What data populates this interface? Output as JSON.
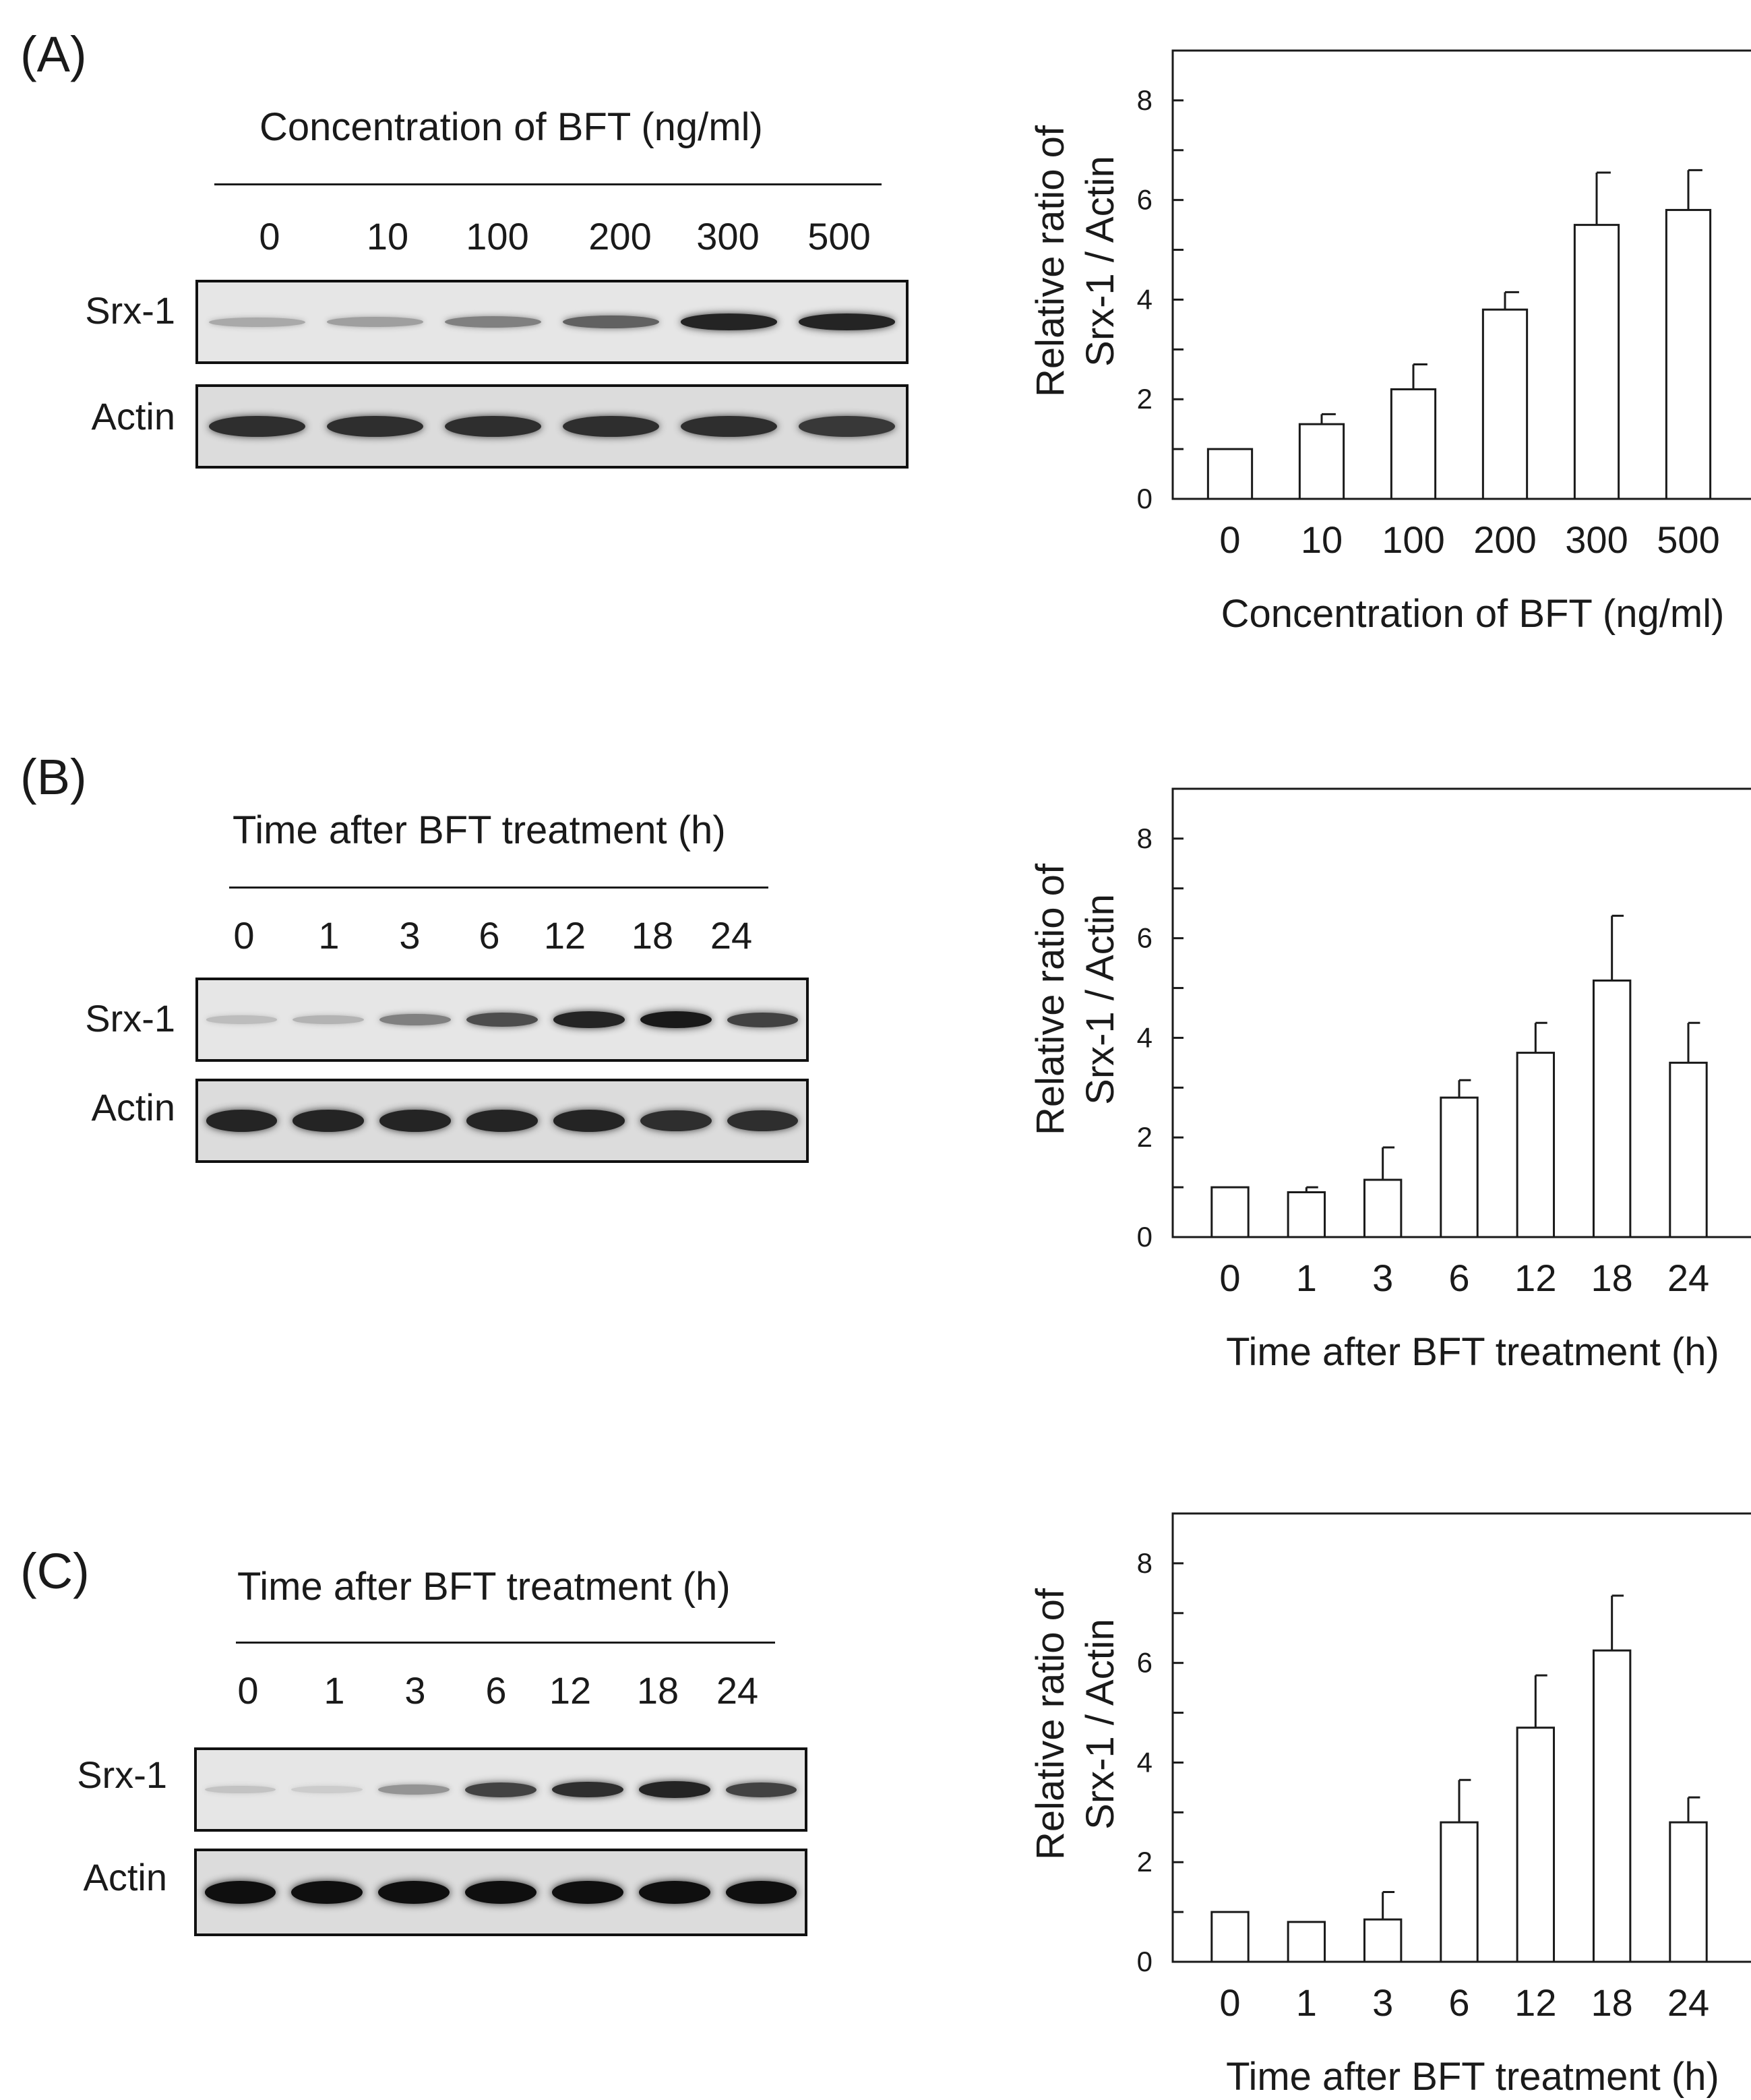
{
  "panels": [
    {
      "label": "(A)",
      "blot": {
        "title": "Concentration  of BFT  (ng/ml)",
        "lanes": [
          "0",
          "10",
          "100",
          "200",
          "300",
          "500"
        ],
        "rows": [
          "Srx-1",
          "Actin"
        ],
        "srx_intensity": [
          0.25,
          0.3,
          0.45,
          0.6,
          0.9,
          0.9
        ],
        "actin_intensity": [
          0.85,
          0.85,
          0.85,
          0.85,
          0.85,
          0.8
        ]
      },
      "chart_data": {
        "type": "bar",
        "categories": [
          "0",
          "10",
          "100",
          "200",
          "300",
          "500"
        ],
        "values": [
          1.0,
          1.5,
          2.2,
          3.8,
          5.5,
          5.8
        ],
        "errors": [
          0,
          0.2,
          0.5,
          0.35,
          1.05,
          0.8
        ],
        "ylim": [
          0,
          9
        ],
        "yticks": [
          0,
          2,
          4,
          6,
          8
        ],
        "xlabel": "Concentration  of BFT  (ng/ml)",
        "ylabel_line1": "Relative ratio of",
        "ylabel_line2": "Srx-1 / Actin"
      }
    },
    {
      "label": "(B)",
      "blot": {
        "title": "Time after  BFT treatment  (h)",
        "lanes": [
          "0",
          "1",
          "3",
          "6",
          "12",
          "18",
          "24"
        ],
        "rows": [
          "Srx-1",
          "Actin"
        ],
        "srx_intensity": [
          0.15,
          0.2,
          0.45,
          0.7,
          0.9,
          0.95,
          0.75
        ],
        "actin_intensity": [
          0.9,
          0.9,
          0.9,
          0.9,
          0.9,
          0.85,
          0.85
        ]
      },
      "chart_data": {
        "type": "bar",
        "categories": [
          "0",
          "1",
          "3",
          "6",
          "12",
          "18",
          "24"
        ],
        "values": [
          1.0,
          0.9,
          1.15,
          2.8,
          3.7,
          5.15,
          3.5
        ],
        "errors": [
          0,
          0.1,
          0.65,
          0.35,
          0.6,
          1.3,
          0.8
        ],
        "ylim": [
          0,
          9
        ],
        "yticks": [
          0,
          2,
          4,
          6,
          8
        ],
        "xlabel": "Time after  BFT treatment  (h)",
        "ylabel_line1": "Relative ratio of",
        "ylabel_line2": "Srx-1 / Actin"
      }
    },
    {
      "label": "(C)",
      "blot": {
        "title": "Time after  BFT treatment  (h)",
        "lanes": [
          "0",
          "1",
          "3",
          "6",
          "12",
          "18",
          "24"
        ],
        "rows": [
          "Srx-1",
          "Actin"
        ],
        "srx_intensity": [
          0.12,
          0.08,
          0.35,
          0.75,
          0.85,
          0.9,
          0.75
        ],
        "actin_intensity": [
          1.0,
          1.0,
          1.0,
          1.0,
          1.0,
          1.0,
          1.0
        ]
      },
      "chart_data": {
        "type": "bar",
        "categories": [
          "0",
          "1",
          "3",
          "6",
          "12",
          "18",
          "24"
        ],
        "values": [
          1.0,
          0.8,
          0.85,
          2.8,
          4.7,
          6.25,
          2.8
        ],
        "errors": [
          0,
          0,
          0.55,
          0.85,
          1.05,
          1.1,
          0.5
        ],
        "ylim": [
          0,
          9
        ],
        "yticks": [
          0,
          2,
          4,
          6,
          8
        ],
        "xlabel": "Time after  BFT treatment  (h)",
        "ylabel_line1": "Relative ratio of",
        "ylabel_line2": "Srx-1 / Actin"
      }
    }
  ]
}
